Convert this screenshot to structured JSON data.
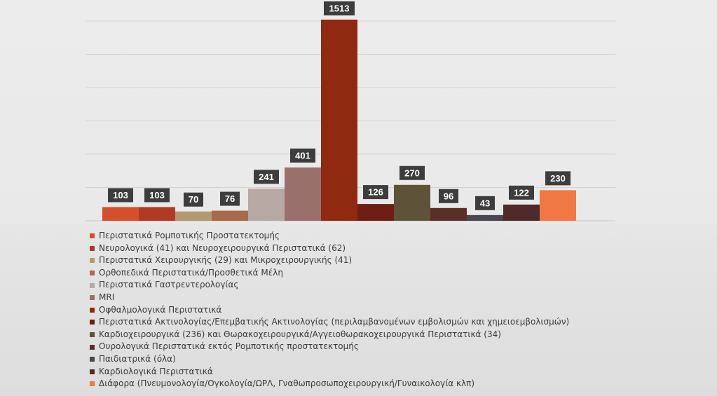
{
  "chart_data": {
    "type": "bar",
    "ylim": [
      0,
      1600
    ],
    "grid": true,
    "legend_position": "bottom",
    "series": [
      {
        "name": "Περιστατικά Ρομποτικής Προστατεκτομής",
        "value": 103,
        "color": "#d5502a"
      },
      {
        "name": "Νευρολογικά (41) και Νευροχειρουργικά Περιστατικά (62)",
        "value": 103,
        "color": "#b13a22"
      },
      {
        "name": "Περιστατικά Χειρουργικής (29) και  Μικροχειρουργικής (41)",
        "value": 70,
        "color": "#b39a72"
      },
      {
        "name": "Ορθοπεδικά Περιστατικά/Προσθετικά Μέλη",
        "value": 76,
        "color": "#a9694d"
      },
      {
        "name": "Περιστατικά Γαστρεντερολογίας",
        "value": 241,
        "color": "#b8a9a4"
      },
      {
        "name": "MRI",
        "value": 401,
        "color": "#99706c"
      },
      {
        "name": "Οφθαλμολογικά Περιστατικά",
        "value": 1513,
        "color": "#8f2a10"
      },
      {
        "name": "Περιστατικά Ακτινολογίας/Επεμβατικής Ακτινολογίας  (περιλαμβανομένων εμβολισμών και χημειοεμβολισμών)",
        "value": 126,
        "color": "#6f1e14"
      },
      {
        "name": "Καρδιοχειρουργικά (236) και Θωρακοχειρουργικά/Αγγειοθωρακοχειρουργικά Περιστατικά (34)",
        "value": 270,
        "color": "#5e5339"
      },
      {
        "name": "Ουρολογικά Περιστατικά εκτός Ρομποτικής προστατεκτομής",
        "value": 96,
        "color": "#5b2f27"
      },
      {
        "name": "Παιδιατρικά (όλα)",
        "value": 43,
        "color": "#4a4550"
      },
      {
        "name": "Καρδιολογικά Περιστατικά",
        "value": 122,
        "color": "#4f2a2b"
      },
      {
        "name": "Διάφορα (Πνευμονολογία/Ογκολογία/ΩΡΛ, Γναθωπροσωποχειρουργική/Γυναικολογία κλπ)",
        "value": 230,
        "color": "#f07844"
      }
    ]
  }
}
